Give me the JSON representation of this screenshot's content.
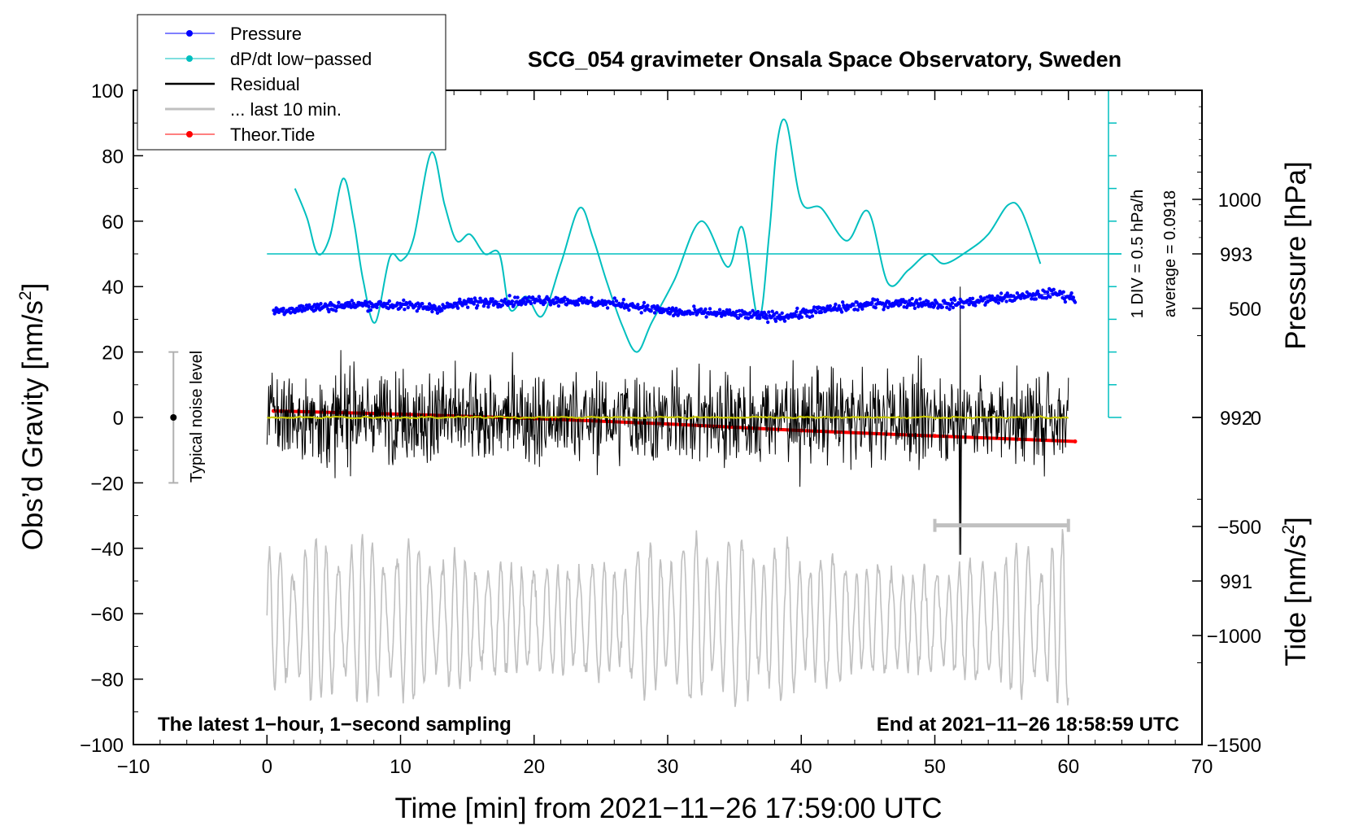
{
  "chart_data": {
    "type": "line",
    "title": "SCG_054 gravimeter Onsala Space Observatory, Sweden",
    "xlabel": "Time [min] from 2021−11−26 17:59:00 UTC",
    "ylabel_left_main": "Obs’d Gravity [nm/s",
    "ylabel_left_sup": "2",
    "ylabel_left_close": "]",
    "ylabel_right_pressure": "Pressure [hPa]",
    "ylabel_right_tide_main": "Tide [nm/s",
    "ylabel_right_tide_sup": "2",
    "ylabel_right_tide_close": "]",
    "xlim": [
      -10,
      70
    ],
    "ylim": [
      -100,
      100
    ],
    "pressure_lim": [
      990,
      994
    ],
    "tide_lim": [
      -1500,
      1500
    ],
    "x_ticks": [
      {
        "v": -10,
        "label": "−10"
      },
      {
        "v": 0,
        "label": "0"
      },
      {
        "v": 10,
        "label": "10"
      },
      {
        "v": 20,
        "label": "20"
      },
      {
        "v": 30,
        "label": "30"
      },
      {
        "v": 40,
        "label": "40"
      },
      {
        "v": 50,
        "label": "50"
      },
      {
        "v": 60,
        "label": "60"
      },
      {
        "v": 70,
        "label": "70"
      }
    ],
    "y_ticks": [
      {
        "v": 100,
        "label": "100"
      },
      {
        "v": 80,
        "label": "80"
      },
      {
        "v": 60,
        "label": "60"
      },
      {
        "v": 40,
        "label": "40"
      },
      {
        "v": 20,
        "label": "20"
      },
      {
        "v": 0,
        "label": "0"
      },
      {
        "v": -20,
        "label": "−20"
      },
      {
        "v": -40,
        "label": "−40"
      },
      {
        "v": -60,
        "label": "−60"
      },
      {
        "v": -80,
        "label": "−80"
      },
      {
        "v": -100,
        "label": "−100"
      }
    ],
    "pressure_ticks": [
      {
        "v": 993,
        "label": "993"
      },
      {
        "v": 992,
        "label": "992"
      },
      {
        "v": 991,
        "label": "991"
      }
    ],
    "tide_ticks": [
      {
        "v": 1000,
        "label": "1000"
      },
      {
        "v": 500,
        "label": "500"
      },
      {
        "v": 0,
        "label": "0"
      },
      {
        "v": -500,
        "label": "−500"
      },
      {
        "v": -1000,
        "label": "−1000"
      },
      {
        "v": -1500,
        "label": "−1500"
      }
    ],
    "legend": {
      "position": "top-left",
      "entries": [
        {
          "label": "Pressure",
          "color": "#0000ff",
          "marker": true
        },
        {
          "label": "dP/dt low−passed",
          "color": "#00bfbf",
          "marker": true
        },
        {
          "label": "Residual",
          "color": "#000000",
          "marker": false
        },
        {
          "label": "... last 10 min.",
          "color": "#c0c0c0",
          "marker": false
        },
        {
          "label": "Theor.Tide",
          "color": "#ff0000",
          "marker": true
        }
      ]
    },
    "annotations": {
      "bottom_left": "The latest 1−hour, 1−second sampling",
      "bottom_right": "End at 2021−11−26 18:58:59 UTC",
      "noise_label": "Typical noise level",
      "dpdt_div": "1 DIV = 0.5 hPa/h",
      "dpdt_avg": "average = 0.0918"
    },
    "noise_bar": {
      "x": -7,
      "y_low": -20,
      "y_high": 20,
      "center": 0
    },
    "last10_bar": {
      "x0": 50,
      "x1": 60,
      "y": -33
    },
    "dpdt_scale_bar": {
      "x": 63,
      "y_low": 0,
      "y_high": 100,
      "divisions": 10,
      "zero_line_y": 50
    },
    "series": [
      {
        "name": "Pressure",
        "axis": "pressure",
        "color": "#0000ff",
        "x": [
          0.5,
          3,
          5,
          7,
          9,
          11,
          13,
          15,
          17,
          19,
          21,
          23,
          25,
          27,
          29,
          31,
          33,
          35,
          37,
          39,
          41,
          43,
          45,
          47,
          49,
          51,
          53,
          55,
          57,
          59,
          60.5
        ],
        "y": [
          992.65,
          992.67,
          992.68,
          992.69,
          992.69,
          992.68,
          992.67,
          992.7,
          992.71,
          992.71,
          992.72,
          992.71,
          992.7,
          992.69,
          992.66,
          992.64,
          992.64,
          992.63,
          992.62,
          992.62,
          992.65,
          992.67,
          992.69,
          992.7,
          992.7,
          992.69,
          992.71,
          992.73,
          992.74,
          992.76,
          992.73
        ]
      },
      {
        "name": "dP/dt low−passed",
        "axis": "left",
        "color": "#00bfbf",
        "x": [
          2.1,
          3,
          3.8,
          4.7,
          5.7,
          6.5,
          7.2,
          8.1,
          9.2,
          10.1,
          11,
          12.3,
          13.3,
          14.2,
          15.2,
          16.3,
          17.4,
          18.2,
          19.4,
          20.6,
          22,
          23.4,
          24.4,
          25.4,
          26.6,
          27.7,
          28.8,
          30.5,
          32.5,
          34.5,
          35.6,
          36.8,
          37.6,
          38.2,
          38.9,
          40,
          41.5,
          43.4,
          45,
          46.5,
          48,
          49.5,
          50.7,
          52.5,
          54,
          55.5,
          56.5,
          57.9
        ],
        "y": [
          70,
          61,
          50,
          55,
          73,
          60,
          42,
          29,
          49,
          48,
          55,
          81,
          65,
          54,
          56,
          50,
          50,
          33,
          37,
          31,
          47,
          64,
          55,
          42,
          28,
          20,
          29,
          42,
          60,
          46,
          58,
          30,
          56,
          84,
          90,
          66,
          64,
          54,
          63,
          41,
          45,
          50,
          47,
          51,
          56,
          65,
          63,
          47
        ]
      },
      {
        "name": "Theor.Tide",
        "axis": "tide",
        "color": "#ff0000",
        "x": [
          0.5,
          10,
          20,
          30,
          40,
          50,
          60.5
        ],
        "y": [
          30,
          15,
          -5,
          -30,
          -60,
          -85,
          -110
        ]
      }
    ],
    "residual": {
      "x_range": [
        0,
        60
      ],
      "amplitude": 27,
      "running_mean_color": "#cccc00"
    },
    "last10": {
      "x_range": [
        0,
        60
      ],
      "color": "#c0c0c0"
    }
  }
}
